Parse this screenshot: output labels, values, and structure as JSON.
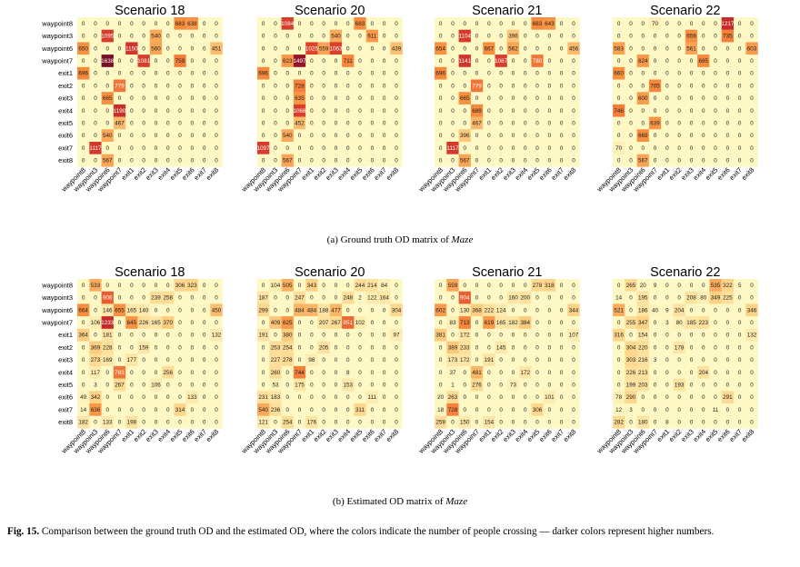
{
  "labels": {
    "rows": [
      "waypoint8",
      "waypoint3",
      "waypoint6",
      "waypoint7",
      "exit1",
      "exit2",
      "exit3",
      "exit4",
      "exit5",
      "exit6",
      "exit7",
      "exit8"
    ],
    "cols": [
      "waypoint8",
      "waypoint3",
      "waypoint6",
      "waypoint7",
      "exit1",
      "exit2",
      "exit3",
      "exit4",
      "exit5",
      "exit6",
      "exit7",
      "exit8"
    ]
  },
  "captions": {
    "a_prefix": "(a) Ground truth OD matrix of ",
    "a_model": "Maze",
    "b_prefix": "(b) Estimated OD matrix of ",
    "b_model": "Maze",
    "fig_label": "Fig. 15.",
    "fig_text": " Comparison between the ground truth OD and the estimated OD, where the colors indicate the number of people crossing — darker colors represent higher numbers."
  },
  "colors": {
    "scale": [
      "#fdf8c4",
      "#fdd386",
      "#f88c3c",
      "#e0452b",
      "#b31a2b",
      "#6a0a24"
    ],
    "scale_max": 1700
  },
  "chart_data": [
    {
      "type": "heatmap",
      "title": "Scenario 18",
      "values": [
        [
          0,
          0,
          0,
          0,
          0,
          0,
          0,
          0,
          683,
          638,
          0,
          0
        ],
        [
          0,
          0,
          1095,
          0,
          0,
          0,
          540,
          0,
          0,
          0,
          0,
          0
        ],
        [
          650,
          0,
          0,
          0,
          1150,
          0,
          560,
          0,
          0,
          0,
          0,
          451
        ],
        [
          0,
          0,
          1638,
          0,
          0,
          1081,
          0,
          0,
          759,
          0,
          0,
          0
        ],
        [
          696,
          0,
          0,
          0,
          0,
          0,
          0,
          0,
          0,
          0,
          0,
          0
        ],
        [
          0,
          0,
          0,
          779,
          0,
          0,
          0,
          0,
          0,
          0,
          0,
          0
        ],
        [
          0,
          0,
          665,
          0,
          0,
          0,
          0,
          0,
          0,
          0,
          0,
          0
        ],
        [
          0,
          0,
          0,
          1190,
          0,
          0,
          0,
          0,
          0,
          0,
          0,
          0
        ],
        [
          0,
          0,
          0,
          467,
          0,
          0,
          0,
          0,
          0,
          0,
          0,
          0
        ],
        [
          0,
          0,
          540,
          0,
          0,
          0,
          0,
          0,
          0,
          0,
          0,
          0
        ],
        [
          0,
          1117,
          0,
          0,
          0,
          0,
          0,
          0,
          0,
          0,
          0,
          0
        ],
        [
          0,
          0,
          567,
          0,
          0,
          0,
          0,
          0,
          0,
          0,
          0,
          0
        ]
      ]
    },
    {
      "type": "heatmap",
      "title": "Scenario 20",
      "values": [
        [
          0,
          0,
          1084,
          0,
          0,
          0,
          0,
          0,
          683,
          0,
          0,
          0
        ],
        [
          0,
          0,
          0,
          0,
          0,
          0,
          540,
          0,
          0,
          611,
          0,
          0
        ],
        [
          0,
          0,
          0,
          0,
          1025,
          559,
          1063,
          0,
          0,
          0,
          0,
          439
        ],
        [
          0,
          0,
          623,
          1497,
          0,
          0,
          0,
          711,
          0,
          0,
          0,
          0
        ],
        [
          696,
          0,
          0,
          0,
          0,
          0,
          0,
          0,
          0,
          0,
          0,
          0
        ],
        [
          0,
          0,
          0,
          728,
          0,
          0,
          0,
          0,
          0,
          0,
          0,
          0
        ],
        [
          0,
          0,
          0,
          635,
          0,
          0,
          0,
          0,
          0,
          0,
          0,
          0
        ],
        [
          0,
          0,
          0,
          1068,
          0,
          0,
          0,
          0,
          0,
          0,
          0,
          0
        ],
        [
          0,
          0,
          0,
          452,
          0,
          0,
          0,
          0,
          0,
          0,
          0,
          0
        ],
        [
          0,
          0,
          540,
          0,
          0,
          0,
          0,
          0,
          0,
          0,
          0,
          0
        ],
        [
          1097,
          0,
          0,
          0,
          0,
          0,
          0,
          0,
          0,
          0,
          0,
          0
        ],
        [
          0,
          0,
          567,
          0,
          0,
          0,
          0,
          0,
          0,
          0,
          0,
          0
        ]
      ]
    },
    {
      "type": "heatmap",
      "title": "Scenario 21",
      "values": [
        [
          0,
          0,
          0,
          0,
          0,
          0,
          0,
          0,
          683,
          643,
          0,
          0
        ],
        [
          0,
          0,
          1104,
          0,
          0,
          0,
          396,
          0,
          0,
          0,
          0,
          0
        ],
        [
          654,
          0,
          0,
          0,
          667,
          0,
          562,
          0,
          0,
          0,
          0,
          456
        ],
        [
          0,
          0,
          1141,
          0,
          0,
          1087,
          0,
          0,
          780,
          0,
          0,
          0
        ],
        [
          696,
          0,
          0,
          0,
          0,
          0,
          0,
          0,
          0,
          0,
          0,
          0
        ],
        [
          0,
          0,
          0,
          779,
          0,
          0,
          0,
          0,
          0,
          0,
          0,
          0
        ],
        [
          0,
          0,
          665,
          0,
          0,
          0,
          0,
          0,
          0,
          0,
          0,
          0
        ],
        [
          0,
          0,
          0,
          689,
          0,
          0,
          0,
          0,
          0,
          0,
          0,
          0
        ],
        [
          0,
          0,
          0,
          467,
          0,
          0,
          0,
          0,
          0,
          0,
          0,
          0
        ],
        [
          0,
          0,
          396,
          0,
          0,
          0,
          0,
          0,
          0,
          0,
          0,
          0
        ],
        [
          0,
          1117,
          0,
          0,
          0,
          0,
          0,
          0,
          0,
          0,
          0,
          0
        ],
        [
          0,
          0,
          567,
          0,
          0,
          0,
          0,
          0,
          0,
          0,
          0,
          0
        ]
      ]
    },
    {
      "type": "heatmap",
      "title": "Scenario 22",
      "values": [
        [
          0,
          0,
          0,
          70,
          0,
          0,
          0,
          0,
          0,
          1217,
          0,
          0
        ],
        [
          0,
          0,
          0,
          0,
          0,
          0,
          659,
          0,
          0,
          735,
          0,
          0
        ],
        [
          583,
          0,
          0,
          0,
          0,
          0,
          561,
          0,
          0,
          0,
          0,
          603
        ],
        [
          0,
          0,
          624,
          0,
          0,
          0,
          0,
          695,
          0,
          0,
          0,
          0
        ],
        [
          660,
          0,
          0,
          0,
          0,
          0,
          0,
          0,
          0,
          0,
          0,
          0
        ],
        [
          0,
          0,
          0,
          705,
          0,
          0,
          0,
          0,
          0,
          0,
          0,
          0
        ],
        [
          0,
          0,
          600,
          0,
          0,
          0,
          0,
          0,
          0,
          0,
          0,
          0
        ],
        [
          746,
          0,
          0,
          0,
          0,
          0,
          0,
          0,
          0,
          0,
          0,
          0
        ],
        [
          0,
          0,
          0,
          639,
          0,
          0,
          0,
          0,
          0,
          0,
          0,
          0
        ],
        [
          0,
          0,
          669,
          0,
          0,
          0,
          0,
          0,
          0,
          0,
          0,
          0
        ],
        [
          70,
          0,
          0,
          0,
          0,
          0,
          0,
          0,
          0,
          0,
          0,
          0
        ],
        [
          0,
          0,
          567,
          0,
          0,
          0,
          0,
          0,
          0,
          0,
          0,
          0
        ]
      ]
    },
    {
      "type": "heatmap",
      "title": "Scenario 18",
      "values": [
        [
          0,
          533,
          0,
          0,
          0,
          0,
          0,
          0,
          306,
          323,
          0,
          0
        ],
        [
          0,
          0,
          906,
          0,
          0,
          0,
          239,
          258,
          0,
          0,
          0,
          0
        ],
        [
          664,
          0,
          146,
          655,
          165,
          140,
          0,
          0,
          0,
          0,
          0,
          450
        ],
        [
          0,
          106,
          1233,
          0,
          645,
          226,
          165,
          370,
          0,
          0,
          0,
          0
        ],
        [
          364,
          0,
          181,
          0,
          0,
          0,
          0,
          0,
          0,
          0,
          0,
          132
        ],
        [
          0,
          369,
          228,
          0,
          0,
          159,
          0,
          0,
          0,
          0,
          0,
          0
        ],
        [
          0,
          273,
          169,
          0,
          177,
          0,
          0,
          0,
          0,
          0,
          0,
          0
        ],
        [
          0,
          117,
          0,
          783,
          0,
          0,
          0,
          256,
          0,
          0,
          0,
          0
        ],
        [
          0,
          3,
          0,
          267,
          0,
          0,
          106,
          0,
          0,
          0,
          0,
          0
        ],
        [
          49,
          342,
          0,
          0,
          0,
          0,
          0,
          0,
          0,
          133,
          0,
          0
        ],
        [
          14,
          636,
          0,
          0,
          0,
          0,
          0,
          0,
          314,
          0,
          0,
          0
        ],
        [
          182,
          0,
          133,
          0,
          198,
          0,
          0,
          0,
          0,
          0,
          0,
          0
        ]
      ]
    },
    {
      "type": "heatmap",
      "title": "Scenario 20",
      "values": [
        [
          0,
          104,
          505,
          0,
          343,
          0,
          0,
          0,
          244,
          214,
          84,
          0
        ],
        [
          187,
          0,
          0,
          247,
          0,
          0,
          0,
          248,
          2,
          122,
          164,
          0
        ],
        [
          299,
          0,
          0,
          484,
          484,
          188,
          477,
          0,
          0,
          0,
          0,
          304
        ],
        [
          0,
          409,
          625,
          0,
          0,
          207,
          267,
          851,
          102,
          0,
          0,
          0
        ],
        [
          191,
          0,
          380,
          0,
          0,
          0,
          0,
          0,
          0,
          0,
          0,
          97
        ],
        [
          0,
          253,
          254,
          0,
          0,
          205,
          0,
          0,
          0,
          0,
          0,
          0
        ],
        [
          0,
          227,
          278,
          0,
          98,
          0,
          0,
          0,
          0,
          0,
          0,
          0
        ],
        [
          0,
          260,
          0,
          744,
          0,
          0,
          0,
          8,
          0,
          0,
          0,
          0
        ],
        [
          0,
          53,
          0,
          175,
          0,
          0,
          0,
          153,
          0,
          0,
          0,
          0
        ],
        [
          231,
          183,
          0,
          0,
          0,
          0,
          0,
          0,
          0,
          111,
          0,
          0
        ],
        [
          540,
          236,
          0,
          0,
          0,
          0,
          0,
          0,
          311,
          0,
          0,
          0
        ],
        [
          121,
          0,
          254,
          0,
          176,
          0,
          0,
          0,
          0,
          0,
          0,
          0
        ]
      ]
    },
    {
      "type": "heatmap",
      "title": "Scenario 21",
      "values": [
        [
          0,
          559,
          0,
          0,
          0,
          0,
          0,
          0,
          278,
          318,
          0,
          0
        ],
        [
          0,
          0,
          904,
          0,
          0,
          0,
          160,
          200,
          0,
          0,
          0,
          0
        ],
        [
          602,
          0,
          130,
          368,
          222,
          124,
          0,
          0,
          0,
          0,
          0,
          344
        ],
        [
          0,
          83,
          713,
          0,
          619,
          165,
          182,
          384,
          0,
          0,
          0,
          0
        ],
        [
          381,
          0,
          172,
          0,
          0,
          0,
          0,
          0,
          0,
          0,
          0,
          107
        ],
        [
          0,
          389,
          233,
          0,
          0,
          145,
          0,
          0,
          0,
          0,
          0,
          0
        ],
        [
          0,
          173,
          172,
          0,
          191,
          0,
          0,
          0,
          0,
          0,
          0,
          0
        ],
        [
          0,
          37,
          0,
          481,
          0,
          0,
          0,
          172,
          0,
          0,
          0,
          0
        ],
        [
          0,
          1,
          0,
          276,
          0,
          0,
          73,
          0,
          0,
          0,
          0,
          0
        ],
        [
          20,
          263,
          0,
          0,
          0,
          0,
          0,
          0,
          0,
          101,
          0,
          0
        ],
        [
          18,
          728,
          0,
          0,
          0,
          0,
          0,
          0,
          306,
          0,
          0,
          0
        ],
        [
          259,
          0,
          150,
          0,
          154,
          0,
          0,
          0,
          0,
          0,
          0,
          0
        ]
      ]
    },
    {
      "type": "heatmap",
      "title": "Scenario 22",
      "values": [
        [
          0,
          265,
          20,
          9,
          0,
          0,
          0,
          0,
          535,
          322,
          5,
          0
        ],
        [
          14,
          0,
          195,
          0,
          0,
          0,
          208,
          80,
          349,
          225,
          0,
          0
        ],
        [
          521,
          0,
          186,
          40,
          9,
          204,
          0,
          0,
          0,
          0,
          0,
          346
        ],
        [
          0,
          255,
          347,
          0,
          3,
          80,
          185,
          223,
          0,
          0,
          0,
          0
        ],
        [
          316,
          0,
          154,
          0,
          0,
          0,
          0,
          0,
          0,
          0,
          0,
          132
        ],
        [
          0,
          304,
          220,
          0,
          0,
          178,
          0,
          0,
          0,
          0,
          0,
          0
        ],
        [
          0,
          303,
          216,
          3,
          0,
          0,
          0,
          0,
          0,
          0,
          0,
          0
        ],
        [
          0,
          226,
          213,
          0,
          0,
          0,
          0,
          204,
          0,
          0,
          0,
          0
        ],
        [
          0,
          199,
          203,
          0,
          0,
          193,
          0,
          0,
          0,
          0,
          0,
          0
        ],
        [
          78,
          290,
          0,
          0,
          0,
          0,
          0,
          0,
          0,
          291,
          0,
          0
        ],
        [
          12,
          3,
          0,
          0,
          0,
          0,
          0,
          0,
          11,
          0,
          0,
          0
        ],
        [
          282,
          0,
          180,
          0,
          8,
          0,
          0,
          0,
          0,
          0,
          0,
          0
        ]
      ]
    }
  ]
}
